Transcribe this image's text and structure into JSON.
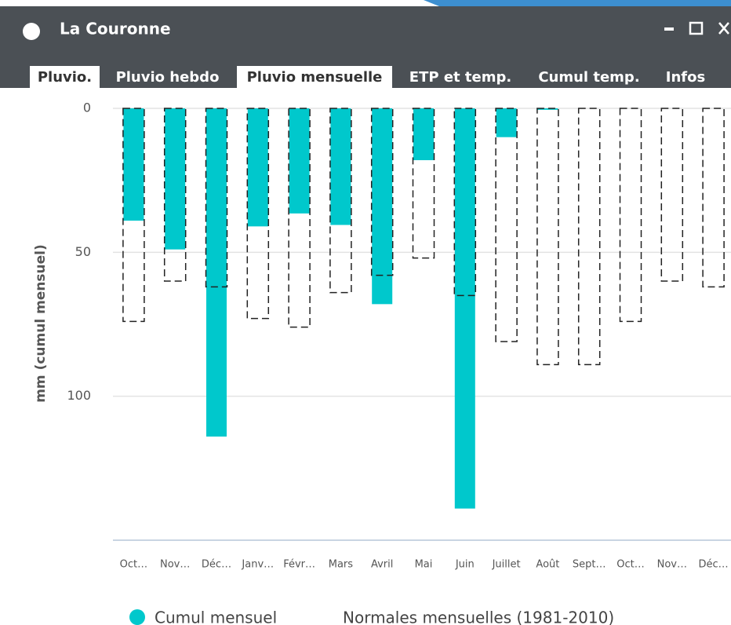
{
  "window": {
    "title": "La Couronne",
    "tabs": [
      {
        "label": "Pluvio.",
        "active": true
      },
      {
        "label": "Pluvio hebdo",
        "active": false
      },
      {
        "label": "Pluvio mensuelle",
        "active": true
      },
      {
        "label": "ETP et temp.",
        "active": false
      },
      {
        "label": "Cumul temp.",
        "active": false
      },
      {
        "label": "Infos",
        "active": false
      }
    ]
  },
  "chart_data": {
    "type": "bar",
    "y_axis_label": "mm (cumul mensuel)",
    "y_inverted": true,
    "categories": [
      "Oct…",
      "Nov…",
      "Déc…",
      "Janv…",
      "Févr…",
      "Mars",
      "Avril",
      "Mai",
      "Juin",
      "Juillet",
      "Août",
      "Sept…",
      "Oct…",
      "Nov…",
      "Déc…"
    ],
    "series": [
      {
        "name": "Cumul mensuel",
        "color": "#00c8cc",
        "style": "solid",
        "values": [
          39,
          49,
          114,
          41,
          36.5,
          40.5,
          68,
          18,
          139,
          10,
          0.5,
          null,
          null,
          null,
          null
        ]
      },
      {
        "name": "Normales mensuelles (1981-2010)",
        "color": "#222222",
        "style": "dashed",
        "values": [
          74,
          60,
          62,
          73,
          76,
          64,
          58,
          52,
          65,
          81,
          89,
          89,
          74,
          60,
          62
        ]
      }
    ],
    "ylim": [
      0,
      150
    ],
    "yticks": [
      0,
      50,
      100
    ],
    "grid": true
  }
}
